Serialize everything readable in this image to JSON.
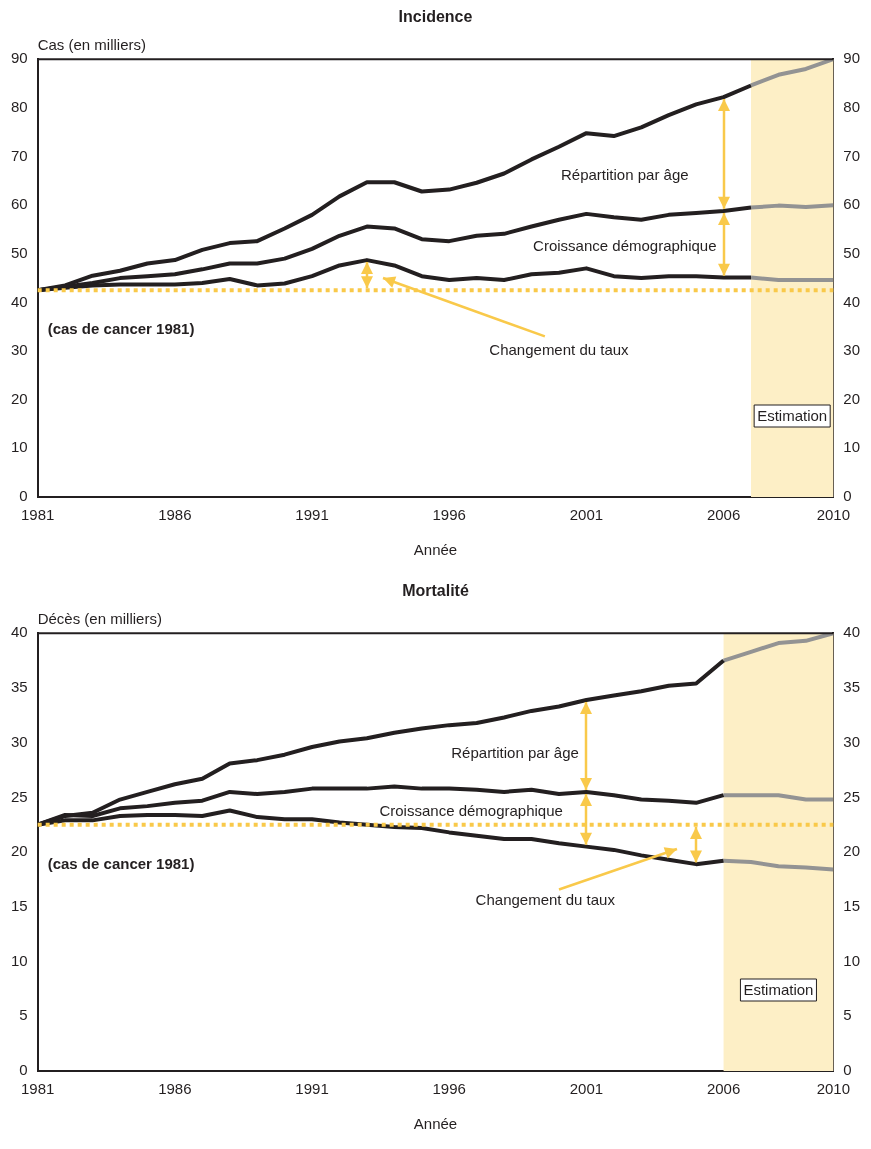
{
  "chart_data": [
    {
      "type": "line",
      "title": "Incidence",
      "xlabel": "Année",
      "ylabel": "Cas (en milliers)",
      "xlim": [
        1981,
        2010
      ],
      "xticks": [
        1981,
        1986,
        1991,
        1996,
        2001,
        2006,
        2010
      ],
      "ylim": [
        0,
        90
      ],
      "yticks": [
        0,
        10,
        20,
        30,
        40,
        50,
        60,
        70,
        80,
        90
      ],
      "y2lim": [
        0,
        90
      ],
      "y2ticks": [
        0,
        10,
        20,
        30,
        40,
        50,
        60,
        70,
        80,
        90
      ],
      "series": [
        {
          "color": "#231f20",
          "x": [
            1981,
            1982,
            1983,
            1984,
            1985,
            1986,
            1987,
            1988,
            1989,
            1990,
            1991,
            1992,
            1993,
            1994,
            1995,
            1996,
            1997,
            1998,
            1999,
            2000,
            2001,
            2002,
            2003,
            2004,
            2005,
            2006,
            2007
          ],
          "values": [
            42.5,
            43.5,
            45.5,
            46.5,
            48,
            48.7,
            50.8,
            52.2,
            52.6,
            55.2,
            58,
            61.8,
            64.7,
            64.7,
            62.8,
            63.2,
            64.6,
            66.5,
            69.4,
            72,
            74.8,
            74.2,
            76,
            78.5,
            80.7,
            82.2,
            84.6
          ]
        },
        {
          "color": "#939393",
          "x": [
            2007,
            2008,
            2009,
            2010
          ],
          "values": [
            84.6,
            86.8,
            88,
            90
          ]
        },
        {
          "color": "#231f20",
          "x": [
            1981,
            1982,
            1983,
            1984,
            1985,
            1986,
            1987,
            1988,
            1989,
            1990,
            1991,
            1992,
            1993,
            1994,
            1995,
            1996,
            1997,
            1998,
            1999,
            2000,
            2001,
            2002,
            2003,
            2004,
            2005,
            2006,
            2007
          ],
          "values": [
            42.5,
            43.2,
            44,
            45,
            45.4,
            45.8,
            46.8,
            48,
            48,
            49,
            51,
            53.7,
            55.6,
            55.2,
            53,
            52.6,
            53.7,
            54.1,
            55.6,
            57,
            58.2,
            57.5,
            57,
            58,
            58.4,
            58.8,
            59.5
          ]
        },
        {
          "color": "#939393",
          "x": [
            2007,
            2008,
            2009,
            2010
          ],
          "values": [
            59.5,
            59.9,
            59.6,
            60
          ]
        },
        {
          "color": "#231f20",
          "x": [
            1981,
            1982,
            1983,
            1984,
            1985,
            1986,
            1987,
            1988,
            1989,
            1990,
            1991,
            1992,
            1993,
            1994,
            1995,
            1996,
            1997,
            1998,
            1999,
            2000,
            2001,
            2002,
            2003,
            2004,
            2005,
            2006,
            2007
          ],
          "values": [
            42.5,
            43,
            43.5,
            43.7,
            43.7,
            43.7,
            44,
            44.8,
            43.5,
            43.9,
            45.4,
            47.6,
            48.7,
            47.6,
            45.4,
            44.6,
            45,
            44.6,
            45.8,
            46.1,
            47,
            45.4,
            45,
            45.4,
            45.4,
            45.1,
            45.1
          ]
        },
        {
          "color": "#939393",
          "x": [
            2007,
            2008,
            2009,
            2010
          ],
          "values": [
            45.1,
            44.6,
            44.6,
            44.6
          ]
        }
      ],
      "ref_lines": [
        {
          "axis": "y",
          "value": 42.5,
          "label": "(cas de cancer 1981)",
          "color": "#f9c94a",
          "line_style": "dotted"
        }
      ],
      "bands": [
        {
          "axis": "x",
          "from": 2007,
          "to": 2010,
          "label": "Estimation",
          "color": "#fdefc6"
        }
      ],
      "annotations": [
        "Répartition par âge",
        "Croissance démographique",
        "Changement du taux"
      ]
    },
    {
      "type": "line",
      "title": "Mortalité",
      "xlabel": "Année",
      "ylabel": "Décès (en milliers)",
      "xlim": [
        1981,
        2010
      ],
      "xticks": [
        1981,
        1986,
        1991,
        1996,
        2001,
        2006,
        2010
      ],
      "ylim": [
        0,
        40
      ],
      "yticks": [
        0,
        5,
        10,
        15,
        20,
        25,
        30,
        35,
        40
      ],
      "y2lim": [
        0,
        40
      ],
      "y2ticks": [
        0,
        5,
        10,
        15,
        20,
        25,
        30,
        35,
        40
      ],
      "series": [
        {
          "color": "#231f20",
          "x": [
            1981,
            1982,
            1983,
            1984,
            1985,
            1986,
            1987,
            1988,
            1989,
            1990,
            1991,
            1992,
            1993,
            1994,
            1995,
            1996,
            1997,
            1998,
            1999,
            2000,
            2001,
            2002,
            2003,
            2004,
            2005,
            2006
          ],
          "values": [
            22.5,
            23.3,
            23.6,
            24.8,
            25.5,
            26.2,
            26.7,
            28.1,
            28.4,
            28.9,
            29.6,
            30.1,
            30.4,
            30.9,
            31.3,
            31.6,
            31.8,
            32.3,
            32.9,
            33.3,
            33.9,
            34.3,
            34.7,
            35.2,
            35.4,
            37.5
          ]
        },
        {
          "color": "#939393",
          "x": [
            2006,
            2007,
            2008,
            2009,
            2010
          ],
          "values": [
            37.5,
            38.3,
            39.1,
            39.3,
            40
          ]
        },
        {
          "color": "#231f20",
          "x": [
            1981,
            1982,
            1983,
            1984,
            1985,
            1986,
            1987,
            1988,
            1989,
            1990,
            1991,
            1992,
            1993,
            1994,
            1995,
            1996,
            1997,
            1998,
            1999,
            2000,
            2001,
            2002,
            2003,
            2004,
            2005,
            2006
          ],
          "values": [
            22.5,
            23.4,
            23.3,
            24,
            24.2,
            24.5,
            24.7,
            25.5,
            25.3,
            25.5,
            25.8,
            25.8,
            25.8,
            26,
            25.8,
            25.8,
            25.7,
            25.5,
            25.7,
            25.3,
            25.5,
            25.2,
            24.8,
            24.7,
            24.5,
            25.2
          ]
        },
        {
          "color": "#939393",
          "x": [
            2006,
            2007,
            2008,
            2009,
            2010
          ],
          "values": [
            25.2,
            25.2,
            25.2,
            24.8,
            24.8
          ]
        },
        {
          "color": "#231f20",
          "x": [
            1981,
            1982,
            1983,
            1984,
            1985,
            1986,
            1987,
            1988,
            1989,
            1990,
            1991,
            1992,
            1993,
            1994,
            1995,
            1996,
            1997,
            1998,
            1999,
            2000,
            2001,
            2002,
            2003,
            2004,
            2005,
            2006
          ],
          "values": [
            22.5,
            22.9,
            22.9,
            23.3,
            23.4,
            23.4,
            23.3,
            23.8,
            23.2,
            23,
            23,
            22.7,
            22.5,
            22.3,
            22.2,
            21.8,
            21.5,
            21.2,
            21.2,
            20.8,
            20.5,
            20.2,
            19.7,
            19.3,
            18.9,
            19.2
          ]
        },
        {
          "color": "#939393",
          "x": [
            2006,
            2007,
            2008,
            2009,
            2010
          ],
          "values": [
            19.2,
            19.1,
            18.7,
            18.6,
            18.4
          ]
        }
      ],
      "ref_lines": [
        {
          "axis": "y",
          "value": 22.5,
          "label": "(cas de cancer 1981)",
          "color": "#f9c94a",
          "line_style": "dotted"
        }
      ],
      "bands": [
        {
          "axis": "x",
          "from": 2006,
          "to": 2010,
          "label": "Estimation",
          "color": "#fdefc6"
        }
      ],
      "annotations": [
        "Répartition par âge",
        "Croissance démographique",
        "Changement du taux"
      ]
    }
  ]
}
